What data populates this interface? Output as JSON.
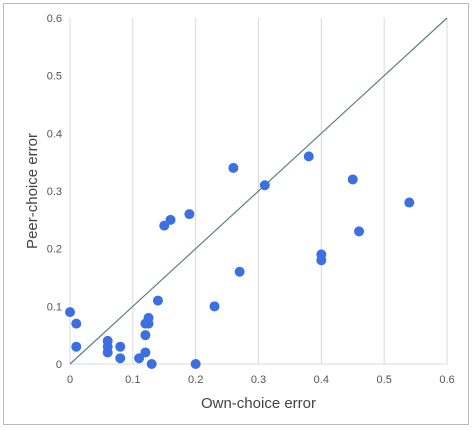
{
  "chart_data": {
    "type": "scatter",
    "title": "",
    "xlabel": "Own-choice error",
    "ylabel": "Peer-choice error",
    "xlim": [
      0,
      0.6
    ],
    "ylim": [
      0,
      0.6
    ],
    "grid": "vertical",
    "legend": "none",
    "x_ticks": [
      "0",
      "0.1",
      "0.2",
      "0.3",
      "0.4",
      "0.5",
      "0.6"
    ],
    "y_ticks": [
      "0",
      "0.1",
      "0.2",
      "0.3",
      "0.4",
      "0.5",
      "0.6"
    ],
    "reference_line": {
      "x": [
        0,
        0.6
      ],
      "y": [
        0,
        0.6
      ],
      "color": "#5f7f86"
    },
    "point_color": "#3c6fe0",
    "points": [
      [
        0.0,
        0.09
      ],
      [
        0.01,
        0.07
      ],
      [
        0.01,
        0.03
      ],
      [
        0.06,
        0.04
      ],
      [
        0.06,
        0.03
      ],
      [
        0.06,
        0.02
      ],
      [
        0.08,
        0.03
      ],
      [
        0.08,
        0.01
      ],
      [
        0.11,
        0.01
      ],
      [
        0.12,
        0.02
      ],
      [
        0.12,
        0.05
      ],
      [
        0.12,
        0.07
      ],
      [
        0.125,
        0.07
      ],
      [
        0.125,
        0.08
      ],
      [
        0.13,
        0.0
      ],
      [
        0.14,
        0.11
      ],
      [
        0.15,
        0.24
      ],
      [
        0.16,
        0.25
      ],
      [
        0.19,
        0.26
      ],
      [
        0.2,
        0.0
      ],
      [
        0.23,
        0.1
      ],
      [
        0.26,
        0.34
      ],
      [
        0.27,
        0.16
      ],
      [
        0.31,
        0.31
      ],
      [
        0.38,
        0.36
      ],
      [
        0.4,
        0.19
      ],
      [
        0.4,
        0.18
      ],
      [
        0.45,
        0.32
      ],
      [
        0.46,
        0.23
      ],
      [
        0.54,
        0.28
      ]
    ]
  }
}
